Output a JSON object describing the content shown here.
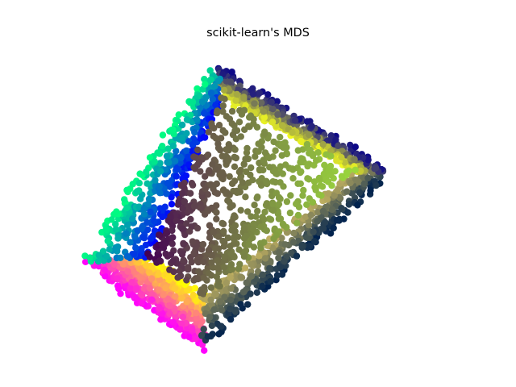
{
  "chart_data": {
    "type": "scatter",
    "title": "scikit-learn's MDS",
    "xlabel": "",
    "ylabel": "",
    "axes_visible": false,
    "grid": false,
    "legend": "none",
    "xlim": [
      -1.4,
      1.4
    ],
    "ylim": [
      -1.25,
      1.25
    ],
    "n_points_approx": 2500,
    "colormap_faces": {
      "bottom_left_face": "spring (magenta to yellow)",
      "bottom_right_face": "cividis (navy to khaki)",
      "top_right_face": "plasma (indigo to yellow)",
      "top_left_face": "winter (blue to green)",
      "inner_face": "viridis (purple to yellow-green)"
    },
    "series": [
      {
        "face": "spring",
        "corners": [
          [
            -1.28,
            -0.55
          ],
          [
            -0.43,
            -1.28
          ],
          [
            -0.43,
            -0.85
          ],
          [
            -0.8,
            -0.52
          ]
        ],
        "color_from": "#ff00ff",
        "color_to": "#ffff00",
        "count": 520
      },
      {
        "face": "cividis",
        "corners": [
          [
            -0.43,
            -1.28
          ],
          [
            0.88,
            0.19
          ],
          [
            0.64,
            0.22
          ],
          [
            -0.43,
            -0.85
          ]
        ],
        "color_from": "#00224e",
        "color_to": "#c0b060",
        "count": 430
      },
      {
        "face": "plasma",
        "corners": [
          [
            -0.35,
            1.1
          ],
          [
            0.88,
            0.19
          ],
          [
            0.64,
            0.22
          ],
          [
            -0.3,
            0.82
          ]
        ],
        "color_from": "#0d0887",
        "color_to": "#f0f921",
        "count": 520
      },
      {
        "face": "winter",
        "corners": [
          [
            -1.28,
            -0.55
          ],
          [
            -0.35,
            1.1
          ],
          [
            -0.3,
            0.82
          ],
          [
            -0.8,
            -0.52
          ]
        ],
        "color_from": "#00ff80",
        "color_to": "#0000ff",
        "count": 430
      },
      {
        "face": "viridis",
        "corners": [
          [
            -0.8,
            -0.52
          ],
          [
            -0.43,
            -0.85
          ],
          [
            0.64,
            0.22
          ],
          [
            -0.3,
            0.82
          ]
        ],
        "color_from": "#440154",
        "color_to": "#9bd93c",
        "count": 620
      }
    ]
  }
}
